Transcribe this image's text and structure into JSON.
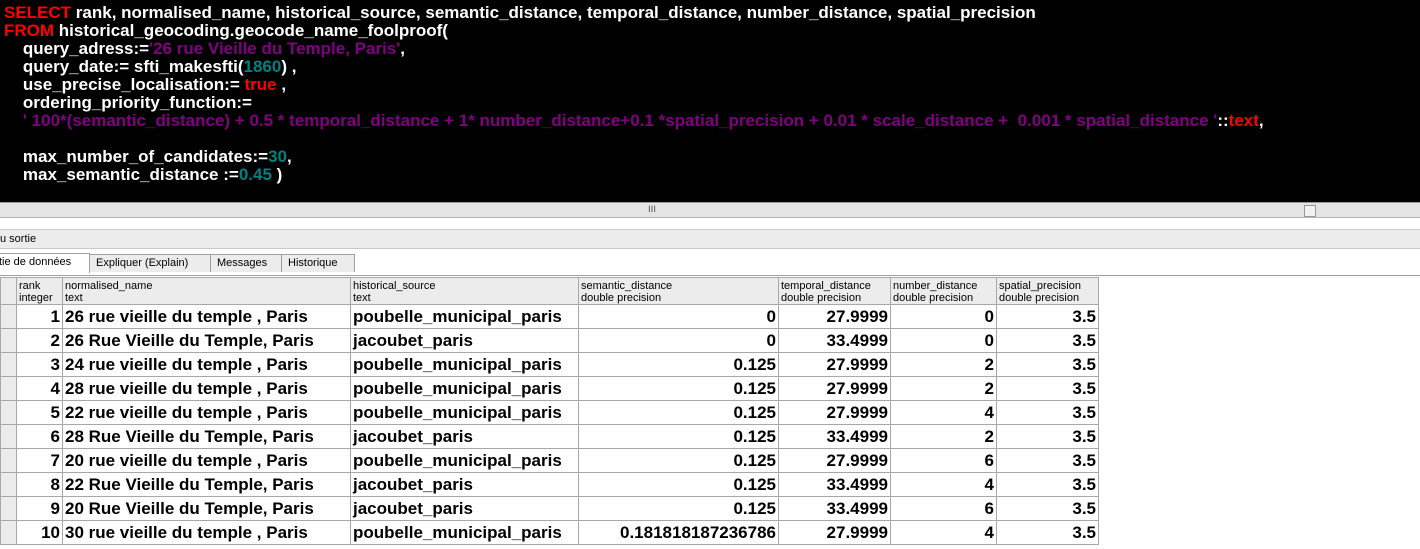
{
  "editor": {
    "lines": [
      [
        {
          "t": "SELECT",
          "c": "kw"
        },
        {
          "t": " rank, normalised_name, historical_source, semantic_distance, temporal_distance, number_distance, spatial_precision",
          "c": ""
        }
      ],
      [
        {
          "t": "FROM",
          "c": "kw"
        },
        {
          "t": " historical_geocoding.geocode_name_foolproof(",
          "c": ""
        }
      ],
      [
        {
          "t": "    query_adress:=",
          "c": ""
        },
        {
          "t": "'26 rue Vieille du Temple, Paris'",
          "c": "str"
        },
        {
          "t": ",",
          "c": ""
        }
      ],
      [
        {
          "t": "    query_date:= sfti_makesfti(",
          "c": ""
        },
        {
          "t": "1860",
          "c": "num"
        },
        {
          "t": ") ,",
          "c": ""
        }
      ],
      [
        {
          "t": "    use_precise_localisation:= ",
          "c": ""
        },
        {
          "t": "true",
          "c": "bool"
        },
        {
          "t": " ,",
          "c": ""
        }
      ],
      [
        {
          "t": "    ordering_priority_function:=",
          "c": ""
        }
      ],
      [
        {
          "t": "    ' 100*(semantic_distance) + 0.5 * temporal_distance + 1* number_distance+0.1 *spatial_precision + 0.01 * scale_distance +  0.001 * spatial_distance '",
          "c": "str"
        },
        {
          "t": "::",
          "c": ""
        },
        {
          "t": "text",
          "c": "kw"
        },
        {
          "t": ",",
          "c": ""
        }
      ],
      [
        {
          "t": "",
          "c": ""
        }
      ],
      [
        {
          "t": "    max_number_of_candidates:=",
          "c": ""
        },
        {
          "t": "30",
          "c": "num"
        },
        {
          "t": ",",
          "c": ""
        }
      ],
      [
        {
          "t": "    max_semantic_distance :=",
          "c": ""
        },
        {
          "t": "0.45",
          "c": "num"
        },
        {
          "t": " )",
          "c": ""
        }
      ]
    ]
  },
  "splitter": {
    "grip": "III"
  },
  "output": {
    "title": "u sortie",
    "tabs": [
      {
        "id": "data",
        "label": "tie de données",
        "active": true
      },
      {
        "id": "explain",
        "label": "Expliquer (Explain)",
        "active": false
      },
      {
        "id": "messages",
        "label": "Messages",
        "active": false
      },
      {
        "id": "history",
        "label": "Historique",
        "active": false
      }
    ]
  },
  "grid": {
    "columns": [
      {
        "name": "rank",
        "type": "integer",
        "align": "r"
      },
      {
        "name": "normalised_name",
        "type": "text",
        "align": "l"
      },
      {
        "name": "historical_source",
        "type": "text",
        "align": "l"
      },
      {
        "name": "semantic_distance",
        "type": "double precision",
        "align": "r"
      },
      {
        "name": "temporal_distance",
        "type": "double precision",
        "align": "r"
      },
      {
        "name": "number_distance",
        "type": "double precision",
        "align": "r"
      },
      {
        "name": "spatial_precision",
        "type": "double precision",
        "align": "r"
      }
    ],
    "rows": [
      [
        "1",
        "26 rue vieille du temple , Paris",
        "poubelle_municipal_paris",
        "0",
        "27.9999",
        "0",
        "3.5"
      ],
      [
        "2",
        "26 Rue Vieille du Temple, Paris",
        "jacoubet_paris",
        "0",
        "33.4999",
        "0",
        "3.5"
      ],
      [
        "3",
        "24 rue vieille du temple , Paris",
        "poubelle_municipal_paris",
        "0.125",
        "27.9999",
        "2",
        "3.5"
      ],
      [
        "4",
        "28 rue vieille du temple , Paris",
        "poubelle_municipal_paris",
        "0.125",
        "27.9999",
        "2",
        "3.5"
      ],
      [
        "5",
        "22 rue vieille du temple , Paris",
        "poubelle_municipal_paris",
        "0.125",
        "27.9999",
        "4",
        "3.5"
      ],
      [
        "6",
        "28 Rue Vieille du Temple, Paris",
        "jacoubet_paris",
        "0.125",
        "33.4999",
        "2",
        "3.5"
      ],
      [
        "7",
        "20 rue vieille du temple , Paris",
        "poubelle_municipal_paris",
        "0.125",
        "27.9999",
        "6",
        "3.5"
      ],
      [
        "8",
        "22 Rue Vieille du Temple, Paris",
        "jacoubet_paris",
        "0.125",
        "33.4999",
        "4",
        "3.5"
      ],
      [
        "9",
        "20 Rue Vieille du Temple, Paris",
        "jacoubet_paris",
        "0.125",
        "33.4999",
        "6",
        "3.5"
      ],
      [
        "10",
        "30 rue vieille du temple , Paris",
        "poubelle_municipal_paris",
        "0.181818187236786",
        "27.9999",
        "4",
        "3.5"
      ]
    ]
  },
  "colors": {
    "editor_bg": "#000000",
    "keyword": "#ff0000",
    "string": "#800080",
    "number": "#008080",
    "header_bg": "#ececec"
  }
}
